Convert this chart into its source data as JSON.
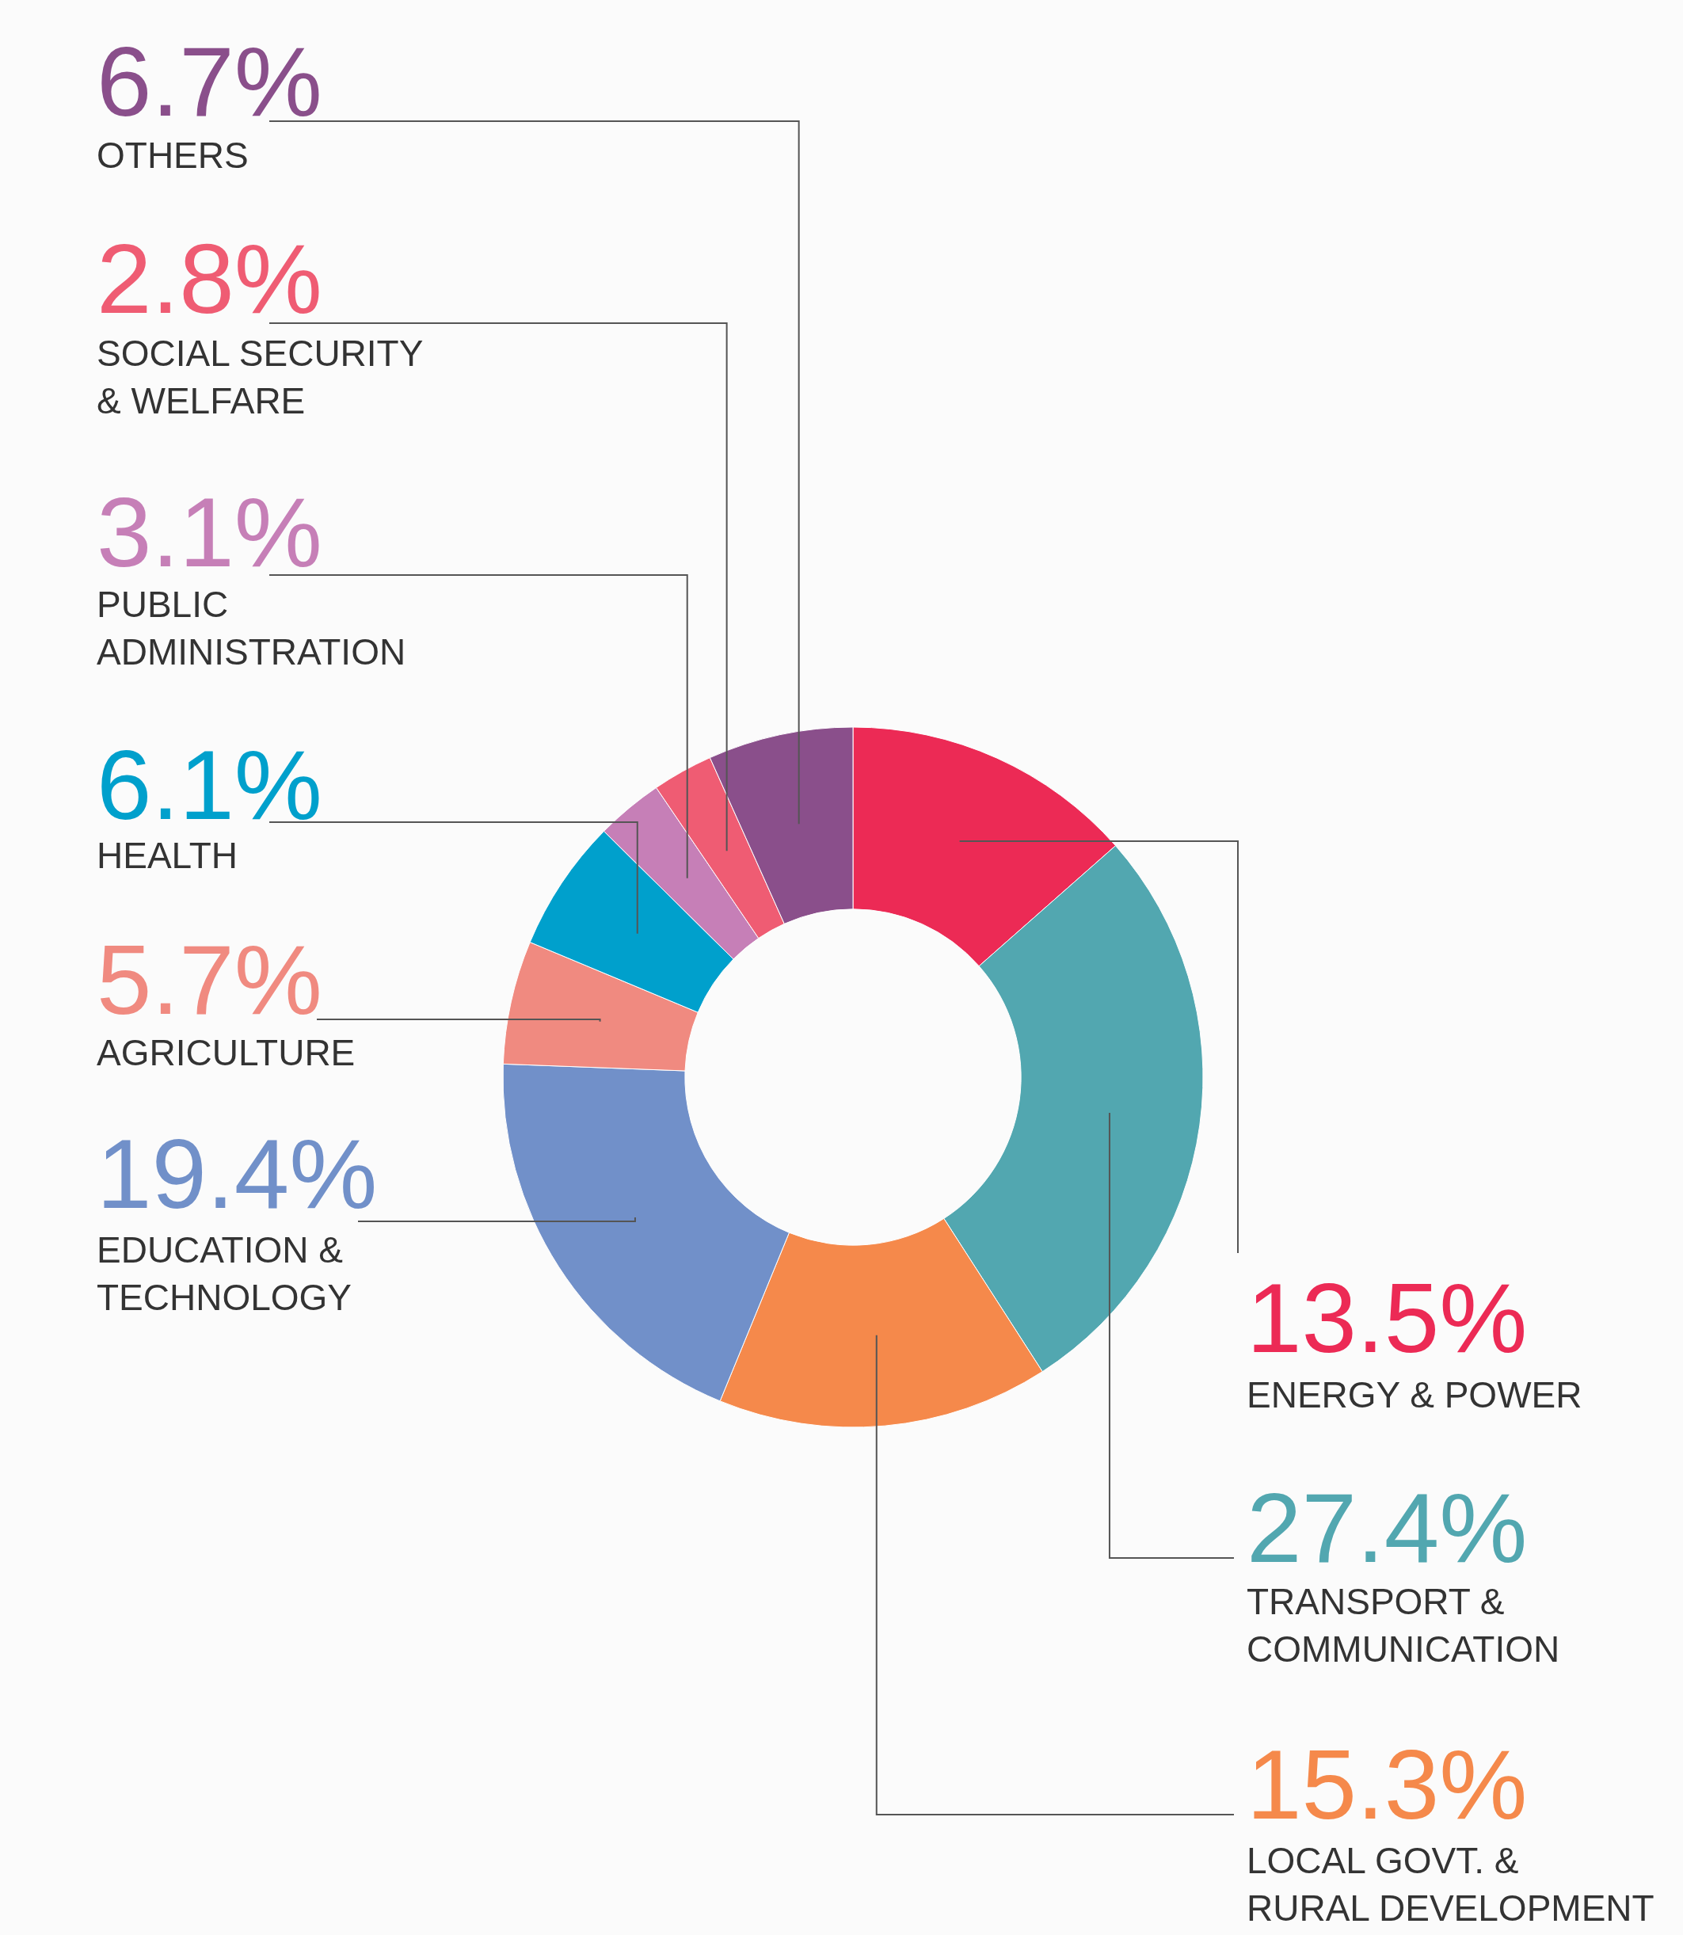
{
  "chart_data": {
    "type": "donut",
    "categories": [
      "ENERGY & POWER",
      "TRANSPORT &\nCOMMUNICATION",
      "LOCAL GOVT. &\nRURAL DEVELOPMENT",
      "EDUCATION &\nTECHNOLOGY",
      "AGRICULTURE",
      "HEALTH",
      "PUBLIC\nADMINISTRATION",
      "SOCIAL SECURITY\n& WELFARE",
      "OTHERS"
    ],
    "values": [
      13.5,
      27.4,
      15.3,
      19.4,
      5.7,
      6.1,
      3.1,
      2.8,
      6.7
    ],
    "value_labels": [
      "13.5%",
      "27.4%",
      "15.3%",
      "19.4%",
      "5.7%",
      "6.1%",
      "3.1%",
      "2.8%",
      "6.7%"
    ],
    "colors": [
      "#ec2a55",
      "#52a7b0",
      "#f5894b",
      "#7190c9",
      "#f08a80",
      "#00a0cc",
      "#c67fb7",
      "#ef5c73",
      "#8a4f8b"
    ],
    "legend": false
  }
}
